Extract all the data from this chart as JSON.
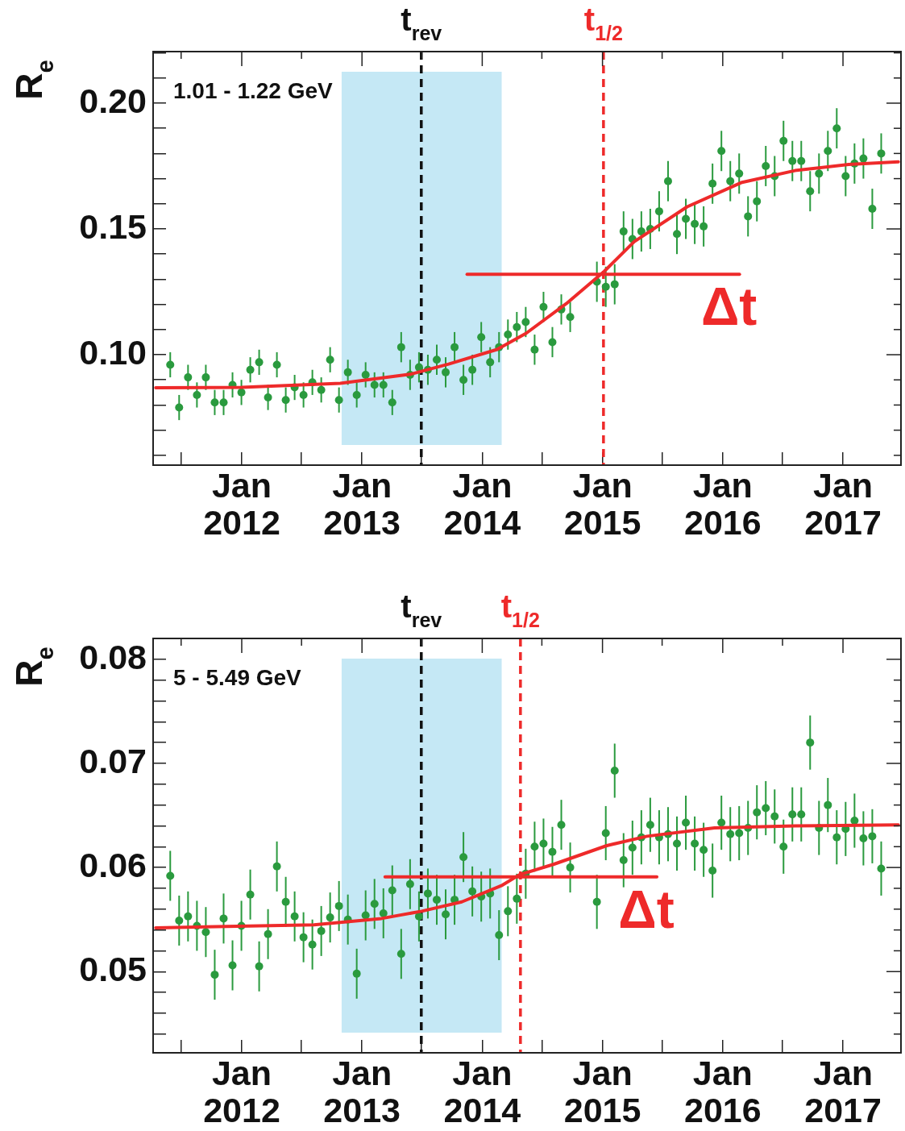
{
  "chart_data": [
    {
      "type": "scatter",
      "ylabel": "R$_{e}$",
      "annotations": [
        "1.01 - 1.22 GeV",
        "Δt"
      ],
      "xlim": [
        "2011-04-07",
        "2017-06-26"
      ],
      "ylim": [
        0.0561,
        0.2205
      ],
      "xticks": [
        {
          "value": "2011-07-01",
          "label": null
        },
        {
          "value": "2012-01-01",
          "label": "Jan 2012"
        },
        {
          "value": "2012-07-01",
          "label": null
        },
        {
          "value": "2013-01-01",
          "label": "Jan 2013"
        },
        {
          "value": "2013-07-01",
          "label": null
        },
        {
          "value": "2014-01-01",
          "label": "Jan 2014"
        },
        {
          "value": "2014-07-01",
          "label": null
        },
        {
          "value": "2015-01-01",
          "label": "Jan 2015"
        },
        {
          "value": "2015-07-01",
          "label": null
        },
        {
          "value": "2016-01-01",
          "label": "Jan 2016"
        },
        {
          "value": "2016-07-01",
          "label": null
        },
        {
          "value": "2017-01-01",
          "label": "Jan 2017"
        }
      ],
      "yticks": [
        {
          "value": 0.06,
          "label": null
        },
        {
          "value": 0.07,
          "label": null
        },
        {
          "value": 0.08,
          "label": null
        },
        {
          "value": 0.09,
          "label": null
        },
        {
          "value": 0.1,
          "label": "0.10"
        },
        {
          "value": 0.11,
          "label": null
        },
        {
          "value": 0.12,
          "label": null
        },
        {
          "value": 0.13,
          "label": null
        },
        {
          "value": 0.14,
          "label": null
        },
        {
          "value": 0.15,
          "label": "0.15"
        },
        {
          "value": 0.16,
          "label": null
        },
        {
          "value": 0.17,
          "label": null
        },
        {
          "value": 0.18,
          "label": null
        },
        {
          "value": 0.19,
          "label": null
        },
        {
          "value": 0.2,
          "label": "0.20"
        },
        {
          "value": 0.21,
          "label": null
        },
        {
          "value": 0.22,
          "label": null
        }
      ],
      "bands": [
        {
          "axis": "x",
          "from": "2012-10-31",
          "to": "2014-03-01",
          "color": "#c5e8f5"
        }
      ],
      "ref_lines": [
        {
          "axis": "x",
          "value": "2013-06-30",
          "label": "t$_{rev}$",
          "color": "#111111",
          "line_style": "dashed"
        },
        {
          "axis": "x",
          "value": "2015-01-04",
          "label": "t$_{1/2}$",
          "color": "#ee2a2a",
          "line_style": "dashed"
        }
      ],
      "series": [
        {
          "marker": "circle",
          "color": "#2a9a3e",
          "x": [
            "2011-05-29",
            "2011-06-25",
            "2011-07-22",
            "2011-08-18",
            "2011-09-14",
            "2011-10-11",
            "2011-11-07",
            "2011-12-04",
            "2011-12-31",
            "2012-01-27",
            "2012-02-23",
            "2012-03-21",
            "2012-04-17",
            "2012-05-14",
            "2012-06-10",
            "2012-07-07",
            "2012-08-03",
            "2012-08-30",
            "2012-09-26",
            "2012-10-23",
            "2012-11-19",
            "2012-12-16",
            "2013-01-12",
            "2013-02-08",
            "2013-03-07",
            "2013-04-03",
            "2013-04-30",
            "2013-05-27",
            "2013-06-23",
            "2013-07-20",
            "2013-08-16",
            "2013-09-12",
            "2013-10-09",
            "2013-11-05",
            "2013-12-02",
            "2013-12-29",
            "2014-01-25",
            "2014-02-21",
            "2014-03-20",
            "2014-04-16",
            "2014-05-13",
            "2014-06-09",
            "2014-07-06",
            "2014-08-02",
            "2014-08-29",
            "2014-09-25",
            "2014-10-22",
            "2014-11-18",
            "2014-12-15",
            "2015-01-11",
            "2015-02-07",
            "2015-03-06",
            "2015-04-02",
            "2015-04-29",
            "2015-05-26",
            "2015-06-22",
            "2015-07-19",
            "2015-08-15",
            "2015-09-11",
            "2015-10-08",
            "2015-11-04",
            "2015-12-01",
            "2015-12-28",
            "2016-01-24",
            "2016-02-20",
            "2016-03-18",
            "2016-04-14",
            "2016-05-11",
            "2016-06-07",
            "2016-07-04",
            "2016-07-31",
            "2016-08-27",
            "2016-09-23",
            "2016-10-20",
            "2016-11-16",
            "2016-12-13",
            "2017-01-09",
            "2017-02-05",
            "2017-03-04",
            "2017-03-31",
            "2017-04-27"
          ],
          "values": [
            0.096,
            0.079,
            0.091,
            0.084,
            0.091,
            0.081,
            0.081,
            0.088,
            0.085,
            0.094,
            0.097,
            0.083,
            0.096,
            0.082,
            0.087,
            0.084,
            0.089,
            0.086,
            0.098,
            0.082,
            0.093,
            0.084,
            0.092,
            0.088,
            0.088,
            0.081,
            0.103,
            0.092,
            0.095,
            0.094,
            0.098,
            0.093,
            0.103,
            0.09,
            0.094,
            0.107,
            0.097,
            0.103,
            0.108,
            0.111,
            0.113,
            0.102,
            0.119,
            0.105,
            0.118,
            0.115,
            null,
            null,
            0.129,
            0.127,
            0.128,
            0.149,
            0.146,
            0.149,
            0.15,
            0.157,
            0.169,
            0.148,
            0.154,
            0.152,
            0.151,
            0.168,
            0.181,
            0.169,
            0.172,
            0.155,
            0.161,
            0.175,
            0.171,
            0.185,
            0.177,
            0.177,
            0.165,
            0.172,
            0.181,
            0.19,
            0.171,
            0.176,
            0.178,
            0.158,
            0.18
          ],
          "errors": [
            0.005,
            0.005,
            0.005,
            0.005,
            0.005,
            0.005,
            0.005,
            0.005,
            0.005,
            0.005,
            0.005,
            0.005,
            0.005,
            0.005,
            0.005,
            0.005,
            0.005,
            0.005,
            0.005,
            0.005,
            0.005,
            0.005,
            0.005,
            0.005,
            0.005,
            0.005,
            0.006,
            0.006,
            0.006,
            0.006,
            0.006,
            0.006,
            0.006,
            0.006,
            0.006,
            0.006,
            0.006,
            0.006,
            0.006,
            0.006,
            0.006,
            0.006,
            0.006,
            0.006,
            0.006,
            0.006,
            null,
            null,
            0.008,
            0.008,
            0.008,
            0.008,
            0.008,
            0.008,
            0.008,
            0.008,
            0.008,
            0.008,
            0.008,
            0.008,
            0.008,
            0.008,
            0.008,
            0.008,
            0.008,
            0.008,
            0.008,
            0.008,
            0.008,
            0.008,
            0.008,
            0.008,
            0.008,
            0.008,
            0.008,
            0.008,
            0.008,
            0.008,
            0.008,
            0.008,
            0.008
          ]
        },
        {
          "type": "line",
          "color": "#ee2a2a",
          "x": [
            "2011-04-15",
            "2012-01-01",
            "2012-10-27",
            "2013-05-27",
            "2013-09-21",
            "2014-02-15",
            "2014-05-14",
            "2014-09-13",
            "2015-01-06",
            "2015-04-07",
            "2015-09-15",
            "2016-02-26",
            "2016-08-08",
            "2017-01-18",
            "2017-06-18"
          ],
          "values": [
            0.0869,
            0.087,
            0.0886,
            0.0922,
            0.0963,
            0.1021,
            0.1085,
            0.1203,
            0.1331,
            0.1449,
            0.1588,
            0.1684,
            0.1732,
            0.1756,
            0.1767
          ]
        },
        {
          "type": "line",
          "color": "#ee2a2a",
          "x": [
            "2013-11-16",
            "2016-02-21"
          ],
          "values": [
            0.132,
            0.132
          ]
        }
      ]
    },
    {
      "type": "scatter",
      "ylabel": "R$_{e}$",
      "annotations": [
        "5 - 5.49 GeV",
        "Δt"
      ],
      "xlim": [
        "2011-04-07",
        "2017-06-26"
      ],
      "ylim": [
        0.0422,
        0.082
      ],
      "xticks": [
        {
          "value": "2011-07-01",
          "label": null
        },
        {
          "value": "2012-01-01",
          "label": "Jan 2012"
        },
        {
          "value": "2012-07-01",
          "label": null
        },
        {
          "value": "2013-01-01",
          "label": "Jan 2013"
        },
        {
          "value": "2013-07-01",
          "label": null
        },
        {
          "value": "2014-01-01",
          "label": "Jan 2014"
        },
        {
          "value": "2014-07-01",
          "label": null
        },
        {
          "value": "2015-01-01",
          "label": "Jan 2015"
        },
        {
          "value": "2015-07-01",
          "label": null
        },
        {
          "value": "2016-01-01",
          "label": "Jan 2016"
        },
        {
          "value": "2016-07-01",
          "label": null
        },
        {
          "value": "2017-01-01",
          "label": "Jan 2017"
        }
      ],
      "yticks": [
        {
          "value": 0.044,
          "label": null
        },
        {
          "value": 0.046,
          "label": null
        },
        {
          "value": 0.048,
          "label": null
        },
        {
          "value": 0.05,
          "label": "0.05"
        },
        {
          "value": 0.052,
          "label": null
        },
        {
          "value": 0.054,
          "label": null
        },
        {
          "value": 0.056,
          "label": null
        },
        {
          "value": 0.058,
          "label": null
        },
        {
          "value": 0.06,
          "label": "0.06"
        },
        {
          "value": 0.062,
          "label": null
        },
        {
          "value": 0.064,
          "label": null
        },
        {
          "value": 0.066,
          "label": null
        },
        {
          "value": 0.068,
          "label": null
        },
        {
          "value": 0.07,
          "label": "0.07"
        },
        {
          "value": 0.072,
          "label": null
        },
        {
          "value": 0.074,
          "label": null
        },
        {
          "value": 0.076,
          "label": null
        },
        {
          "value": 0.078,
          "label": null
        },
        {
          "value": 0.08,
          "label": "0.08"
        },
        {
          "value": 0.082,
          "label": null
        }
      ],
      "bands": [
        {
          "axis": "x",
          "from": "2012-10-31",
          "to": "2014-03-01",
          "color": "#c5e8f5"
        }
      ],
      "ref_lines": [
        {
          "axis": "x",
          "value": "2013-06-30",
          "label": "t$_{rev}$",
          "color": "#111111",
          "line_style": "dashed"
        },
        {
          "axis": "x",
          "value": "2014-04-27",
          "label": "t$_{1/2}$",
          "color": "#ee2a2a",
          "line_style": "dashed"
        }
      ],
      "series": [
        {
          "marker": "circle",
          "color": "#2a9a3e",
          "x": [
            "2011-05-29",
            "2011-06-25",
            "2011-07-22",
            "2011-08-18",
            "2011-09-14",
            "2011-10-11",
            "2011-11-07",
            "2011-12-04",
            "2011-12-31",
            "2012-01-27",
            "2012-02-23",
            "2012-03-21",
            "2012-04-17",
            "2012-05-14",
            "2012-06-10",
            "2012-07-07",
            "2012-08-03",
            "2012-08-30",
            "2012-09-26",
            "2012-10-23",
            "2012-11-19",
            "2012-12-16",
            "2013-01-12",
            "2013-02-08",
            "2013-03-07",
            "2013-04-03",
            "2013-04-30",
            "2013-05-27",
            "2013-06-23",
            "2013-07-20",
            "2013-08-16",
            "2013-09-12",
            "2013-10-09",
            "2013-11-05",
            "2013-12-02",
            "2013-12-29",
            "2014-01-25",
            "2014-02-21",
            "2014-03-20",
            "2014-04-16",
            "2014-05-13",
            "2014-06-09",
            "2014-07-06",
            "2014-08-02",
            "2014-08-29",
            "2014-09-25",
            "2014-10-22",
            "2014-11-18",
            "2014-12-15",
            "2015-01-11",
            "2015-02-07",
            "2015-03-06",
            "2015-04-02",
            "2015-04-29",
            "2015-05-26",
            "2015-06-22",
            "2015-07-19",
            "2015-08-15",
            "2015-09-11",
            "2015-10-08",
            "2015-11-04",
            "2015-12-01",
            "2015-12-28",
            "2016-01-24",
            "2016-02-20",
            "2016-03-18",
            "2016-04-14",
            "2016-05-11",
            "2016-06-07",
            "2016-07-04",
            "2016-07-31",
            "2016-08-27",
            "2016-09-23",
            "2016-10-20",
            "2016-11-16",
            "2016-12-13",
            "2017-01-09",
            "2017-02-05",
            "2017-03-04",
            "2017-03-31",
            "2017-04-27"
          ],
          "values": [
            0.0592,
            0.0549,
            0.0553,
            0.0544,
            0.0538,
            0.0497,
            0.0551,
            0.0506,
            0.0544,
            0.0574,
            0.0505,
            0.0536,
            0.0601,
            0.0567,
            0.0553,
            0.0533,
            0.0526,
            0.0539,
            0.0552,
            0.0563,
            0.055,
            0.0498,
            0.0554,
            0.0565,
            0.0556,
            0.0578,
            0.0517,
            0.0584,
            0.0553,
            0.0575,
            0.0569,
            0.0555,
            0.0569,
            0.061,
            0.0577,
            0.0572,
            0.0575,
            0.0535,
            0.0558,
            0.057,
            0.0594,
            0.062,
            0.0623,
            0.0615,
            0.0641,
            0.06,
            null,
            null,
            0.0567,
            0.0633,
            0.0693,
            0.0607,
            0.0619,
            0.0629,
            0.0641,
            0.0629,
            0.0632,
            0.0623,
            0.0643,
            0.0623,
            0.0617,
            0.0597,
            0.0643,
            0.0632,
            0.0633,
            0.0638,
            0.0653,
            0.0657,
            0.0649,
            0.062,
            0.0651,
            0.0651,
            0.072,
            0.0638,
            0.066,
            0.0629,
            0.0637,
            0.0645,
            0.0628,
            0.063,
            0.0599
          ],
          "errors": [
            0.0024,
            0.0024,
            0.0024,
            0.0024,
            0.0024,
            0.0024,
            0.0024,
            0.0024,
            0.0024,
            0.0024,
            0.0024,
            0.0024,
            0.0024,
            0.0024,
            0.0024,
            0.0024,
            0.0024,
            0.0024,
            0.0024,
            0.0024,
            0.0024,
            0.0024,
            0.0024,
            0.0024,
            0.0024,
            0.0024,
            0.0024,
            0.0024,
            0.0024,
            0.0024,
            0.0024,
            0.0024,
            0.0024,
            0.0024,
            0.0024,
            0.0024,
            0.0024,
            0.0024,
            0.0024,
            0.0024,
            0.0024,
            0.0024,
            0.0024,
            0.0024,
            0.0024,
            0.0024,
            null,
            null,
            0.0026,
            0.0026,
            0.0026,
            0.0026,
            0.0026,
            0.0026,
            0.0026,
            0.0026,
            0.0026,
            0.0026,
            0.0026,
            0.0026,
            0.0026,
            0.0026,
            0.0026,
            0.0026,
            0.0026,
            0.0026,
            0.0026,
            0.0026,
            0.0026,
            0.0026,
            0.0026,
            0.0026,
            0.0026,
            0.0026,
            0.0026,
            0.0026,
            0.0026,
            0.0026,
            0.0026,
            0.0026,
            0.0026
          ]
        },
        {
          "type": "line",
          "color": "#ee2a2a",
          "x": [
            "2011-04-15",
            "2012-08-08",
            "2013-03-01",
            "2013-07-01",
            "2013-10-31",
            "2014-03-03",
            "2014-04-24",
            "2014-08-05",
            "2015-01-14",
            "2015-05-16",
            "2015-12-07",
            "2016-08-08",
            "2017-06-18"
          ],
          "values": [
            0.0542,
            0.0545,
            0.0551,
            0.0558,
            0.0567,
            0.0583,
            0.0593,
            0.0603,
            0.0621,
            0.063,
            0.0638,
            0.064,
            0.0641
          ]
        },
        {
          "type": "line",
          "color": "#ee2a2a",
          "x": [
            "2013-03-12",
            "2015-06-15"
          ],
          "values": [
            0.0591,
            0.0591
          ]
        }
      ]
    }
  ]
}
